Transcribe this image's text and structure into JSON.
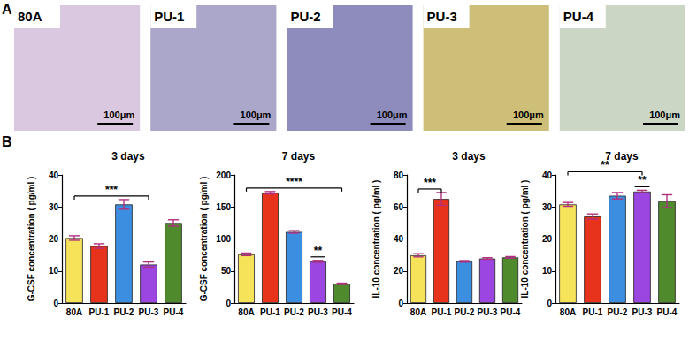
{
  "panel_labels": [
    "A",
    "B"
  ],
  "images": [
    {
      "label": "80A",
      "scale_bar": "100μm"
    },
    {
      "label": "PU-1",
      "scale_bar": "100μm"
    },
    {
      "label": "PU-2",
      "scale_bar": "100μm"
    },
    {
      "label": "PU-3",
      "scale_bar": "100μm"
    },
    {
      "label": "PU-4",
      "scale_bar": "100μm"
    }
  ],
  "chart_data": [
    {
      "type": "bar",
      "title": "3 days",
      "y_label": "G-CSF concentration ( pg/ml )",
      "categories": [
        "80A",
        "PU-1",
        "PU-2",
        "PU-3",
        "PU-4"
      ],
      "values": [
        20.3,
        17.8,
        30.8,
        12.0,
        25.0
      ],
      "errors": [
        0.7,
        0.7,
        1.5,
        0.8,
        1.0
      ],
      "colors": [
        "#f7e35a",
        "#e8331c",
        "#3c8fe0",
        "#9b46e0",
        "#4f8a2c"
      ],
      "ylim": [
        0,
        40
      ],
      "yticks": [
        0,
        10,
        20,
        30,
        40
      ],
      "grid": false,
      "annotations": [
        {
          "from": "80A",
          "to": "PU-3",
          "label": "***"
        }
      ]
    },
    {
      "type": "bar",
      "title": "7 days",
      "y_label": "G-CSF concentration ( pg/ml )",
      "categories": [
        "80A",
        "PU-1",
        "PU-2",
        "PU-3",
        "PU-4"
      ],
      "values": [
        76,
        172,
        111,
        65,
        30
      ],
      "errors": [
        2,
        2,
        2,
        1.5,
        1
      ],
      "colors": [
        "#f7e35a",
        "#e8331c",
        "#3c8fe0",
        "#9b46e0",
        "#4f8a2c"
      ],
      "ylim": [
        0,
        200
      ],
      "yticks": [
        0,
        50,
        100,
        150,
        200
      ],
      "grid": false,
      "annotations": [
        {
          "from": "80A",
          "to": "PU-4",
          "label": "****"
        },
        {
          "from": "PU-3",
          "to": "PU-3",
          "label": "**"
        }
      ]
    },
    {
      "type": "bar",
      "title": "3 days",
      "y_label": "IL-10 concentration ( pg/ml )",
      "categories": [
        "80A",
        "PU-1",
        "PU-2",
        "PU-3",
        "PU-4"
      ],
      "values": [
        29.8,
        65,
        26,
        27.8,
        28.5
      ],
      "errors": [
        1,
        4,
        0.5,
        0.5,
        0.5
      ],
      "colors": [
        "#f7e35a",
        "#e8331c",
        "#3c8fe0",
        "#9b46e0",
        "#4f8a2c"
      ],
      "ylim": [
        0,
        80
      ],
      "yticks": [
        0,
        20,
        40,
        60,
        80
      ],
      "grid": false,
      "annotations": [
        {
          "from": "80A",
          "to": "PU-1",
          "label": "***"
        }
      ]
    },
    {
      "type": "bar",
      "title": "7 days",
      "y_label": "IL-10 concentration ( pg/ml )",
      "categories": [
        "80A",
        "PU-1",
        "PU-2",
        "PU-3",
        "PU-4"
      ],
      "values": [
        30.8,
        27,
        33.5,
        34.8,
        31.8
      ],
      "errors": [
        0.6,
        0.8,
        1,
        0.4,
        2
      ],
      "colors": [
        "#f7e35a",
        "#e8331c",
        "#3c8fe0",
        "#9b46e0",
        "#4f8a2c"
      ],
      "ylim": [
        0,
        40
      ],
      "yticks": [
        0,
        10,
        20,
        30,
        40
      ],
      "grid": false,
      "annotations": [
        {
          "from": "80A",
          "to": "PU-3",
          "label": "**"
        },
        {
          "from": "PU-3",
          "to": "PU-3",
          "label": "**"
        }
      ]
    }
  ]
}
